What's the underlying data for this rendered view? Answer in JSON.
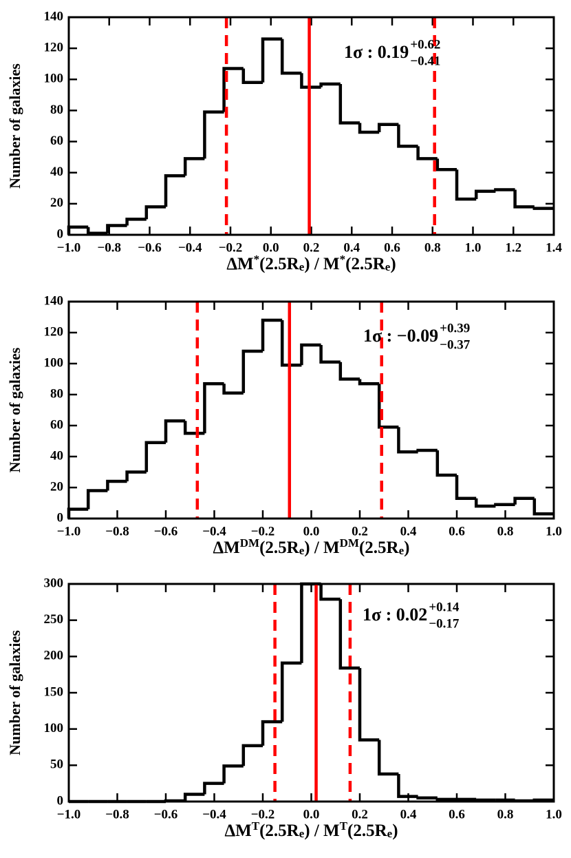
{
  "chart_data": [
    {
      "type": "histogram",
      "ylabel": "Number of galaxies",
      "xlabel_parts": [
        {
          "text": "ΔM",
          "style": "normal"
        },
        {
          "text": "*",
          "style": "sup"
        },
        {
          "text": "(2.5R",
          "style": "normal"
        },
        {
          "text": "e",
          "style": "sub"
        },
        {
          "text": ") / M",
          "style": "normal"
        },
        {
          "text": "*",
          "style": "sup"
        },
        {
          "text": "(2.5R",
          "style": "normal"
        },
        {
          "text": "e",
          "style": "sub"
        },
        {
          "text": ")",
          "style": "normal"
        }
      ],
      "bins": [
        -1.0,
        -0.904,
        -0.808,
        -0.712,
        -0.616,
        -0.52,
        -0.424,
        -0.328,
        -0.232,
        -0.136,
        -0.04,
        0.056,
        0.152,
        0.248,
        0.344,
        0.44,
        0.536,
        0.632,
        0.728,
        0.824,
        0.92,
        1.016,
        1.112,
        1.208,
        1.304,
        1.4
      ],
      "values": [
        5,
        1,
        6,
        10,
        18,
        38,
        49,
        79,
        107,
        98,
        126,
        104,
        95,
        97,
        72,
        66,
        71,
        57,
        49,
        42,
        23,
        28,
        29,
        18,
        17
      ],
      "color": "#000000",
      "xlim": [
        -1.0,
        1.4
      ],
      "xticks": [
        {
          "value": -1.0,
          "label": "−1.0"
        },
        {
          "value": -0.8,
          "label": "−0.8"
        },
        {
          "value": -0.6,
          "label": "−0.6"
        },
        {
          "value": -0.4,
          "label": "−0.4"
        },
        {
          "value": -0.2,
          "label": "−0.2"
        },
        {
          "value": 0,
          "label": "0.0"
        },
        0.2,
        0.4,
        0.6,
        0.8,
        {
          "value": 1.0,
          "label": "1.0"
        },
        1.2,
        1.4
      ],
      "ylim": [
        0,
        140
      ],
      "yticks": [
        0,
        20,
        40,
        60,
        80,
        100,
        120,
        140
      ],
      "vlines": [
        {
          "value": -0.22,
          "style": "dashed",
          "color": "#ff0000"
        },
        {
          "value": 0.19,
          "style": "solid",
          "color": "#ff0000"
        },
        {
          "value": 0.81,
          "style": "dashed",
          "color": "#ff0000"
        }
      ],
      "annotation": {
        "text": "1σ : 0.19",
        "sup": "+0.62",
        "sub": "−0.41"
      }
    },
    {
      "type": "histogram",
      "ylabel": "Number of galaxies",
      "xlabel_parts": [
        {
          "text": "ΔM",
          "style": "normal"
        },
        {
          "text": "DM",
          "style": "sup"
        },
        {
          "text": "(2.5R",
          "style": "normal"
        },
        {
          "text": "e",
          "style": "sub"
        },
        {
          "text": ") / M",
          "style": "normal"
        },
        {
          "text": "DM",
          "style": "sup"
        },
        {
          "text": "(2.5R",
          "style": "normal"
        },
        {
          "text": "e",
          "style": "sub"
        },
        {
          "text": ")",
          "style": "normal"
        }
      ],
      "bins": [
        -1.0,
        -0.92,
        -0.84,
        -0.76,
        -0.68,
        -0.6,
        -0.52,
        -0.44,
        -0.36,
        -0.28,
        -0.2,
        -0.12,
        -0.04,
        0.04,
        0.12,
        0.2,
        0.28,
        0.36,
        0.44,
        0.52,
        0.6,
        0.68,
        0.76,
        0.84,
        0.92,
        1.0
      ],
      "values": [
        6,
        18,
        24,
        30,
        49,
        63,
        55,
        87,
        81,
        108,
        128,
        99,
        112,
        101,
        90,
        87,
        59,
        43,
        44,
        28,
        13,
        8,
        9,
        13,
        3
      ],
      "color": "#000000",
      "xlim": [
        -1.0,
        1.0
      ],
      "xticks": [
        {
          "value": -1.0,
          "label": "−1.0"
        },
        {
          "value": -0.8,
          "label": "−0.8"
        },
        {
          "value": -0.6,
          "label": "−0.6"
        },
        {
          "value": -0.4,
          "label": "−0.4"
        },
        {
          "value": -0.2,
          "label": "−0.2"
        },
        {
          "value": 0,
          "label": "0.0"
        },
        0.2,
        0.4,
        0.6,
        0.8,
        {
          "value": 1.0,
          "label": "1.0"
        }
      ],
      "ylim": [
        0,
        140
      ],
      "yticks": [
        0,
        20,
        40,
        60,
        80,
        100,
        120,
        140
      ],
      "vlines": [
        {
          "value": -0.47,
          "style": "dashed",
          "color": "#ff0000"
        },
        {
          "value": -0.09,
          "style": "solid",
          "color": "#ff0000"
        },
        {
          "value": 0.29,
          "style": "dashed",
          "color": "#ff0000"
        }
      ],
      "annotation": {
        "text": "1σ : −0.09",
        "sup": "+0.39",
        "sub": "−0.37"
      }
    },
    {
      "type": "histogram",
      "ylabel": "Number of galaxies",
      "xlabel_parts": [
        {
          "text": "ΔM",
          "style": "normal"
        },
        {
          "text": "T",
          "style": "sup"
        },
        {
          "text": "(2.5R",
          "style": "normal"
        },
        {
          "text": "e",
          "style": "sub"
        },
        {
          "text": ") / M",
          "style": "normal"
        },
        {
          "text": "T",
          "style": "sup"
        },
        {
          "text": "(2.5R",
          "style": "normal"
        },
        {
          "text": "e",
          "style": "sub"
        },
        {
          "text": ")",
          "style": "normal"
        }
      ],
      "bins": [
        -1.0,
        -0.92,
        -0.84,
        -0.76,
        -0.68,
        -0.6,
        -0.52,
        -0.44,
        -0.36,
        -0.28,
        -0.2,
        -0.12,
        -0.04,
        0.04,
        0.12,
        0.2,
        0.28,
        0.36,
        0.44,
        0.52,
        0.6,
        0.68,
        0.76,
        0.84,
        0.92,
        1.0
      ],
      "values": [
        0,
        0,
        0,
        0,
        0,
        1,
        10,
        25,
        49,
        77,
        110,
        191,
        300,
        279,
        184,
        85,
        38,
        7,
        5,
        3,
        3,
        2,
        2,
        1,
        2
      ],
      "color": "#000000",
      "xlim": [
        -1.0,
        1.0
      ],
      "xticks": [
        {
          "value": -1.0,
          "label": "−1.0"
        },
        {
          "value": -0.8,
          "label": "−0.8"
        },
        {
          "value": -0.6,
          "label": "−0.6"
        },
        {
          "value": -0.4,
          "label": "−0.4"
        },
        {
          "value": -0.2,
          "label": "−0.2"
        },
        {
          "value": 0,
          "label": "0.0"
        },
        0.2,
        0.4,
        0.6,
        0.8,
        {
          "value": 1.0,
          "label": "1.0"
        }
      ],
      "ylim": [
        0,
        300
      ],
      "yticks": [
        0,
        50,
        100,
        150,
        200,
        250,
        300
      ],
      "vlines": [
        {
          "value": -0.15,
          "style": "dashed",
          "color": "#ff0000"
        },
        {
          "value": 0.02,
          "style": "solid",
          "color": "#ff0000"
        },
        {
          "value": 0.16,
          "style": "dashed",
          "color": "#ff0000"
        }
      ],
      "annotation": {
        "text": "1σ : 0.02",
        "sup": "+0.14",
        "sub": "−0.17"
      }
    }
  ]
}
